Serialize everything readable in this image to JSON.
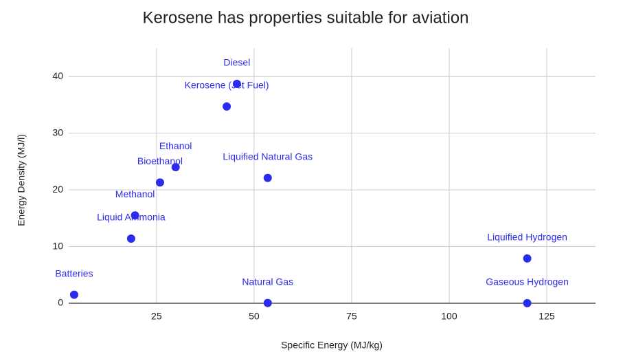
{
  "chart_data": {
    "type": "scatter",
    "title": "Kerosene has properties suitable for aviation",
    "x_label": "Specific Energy (MJ/kg)",
    "y_label": "Energy Density (MJ/l)",
    "labels": [
      "Batteries",
      "Liquid Ammonia",
      "Methanol",
      "Bioethanol",
      "Ethanol",
      "Kerosene (Jet Fuel)",
      "Diesel",
      "Liquified Natural Gas",
      "Natural Gas",
      "Liquified Hydrogen",
      "Gaseous Hydrogen"
    ],
    "x": [
      3.9,
      18.5,
      19.5,
      25.9,
      29.9,
      43.0,
      45.6,
      53.5,
      53.5,
      120,
      120
    ],
    "values": [
      1.5,
      11.4,
      15.5,
      21.3,
      24.0,
      34.7,
      38.7,
      22.1,
      0.04,
      7.9,
      0.01
    ],
    "color": "#2b2bf0",
    "xlim": [
      2.5,
      137.5
    ],
    "xticks": [
      25,
      50,
      75,
      100,
      125
    ],
    "ylim": [
      0,
      45
    ],
    "yticks": [
      0,
      10,
      20,
      30,
      40
    ],
    "grid": true
  }
}
